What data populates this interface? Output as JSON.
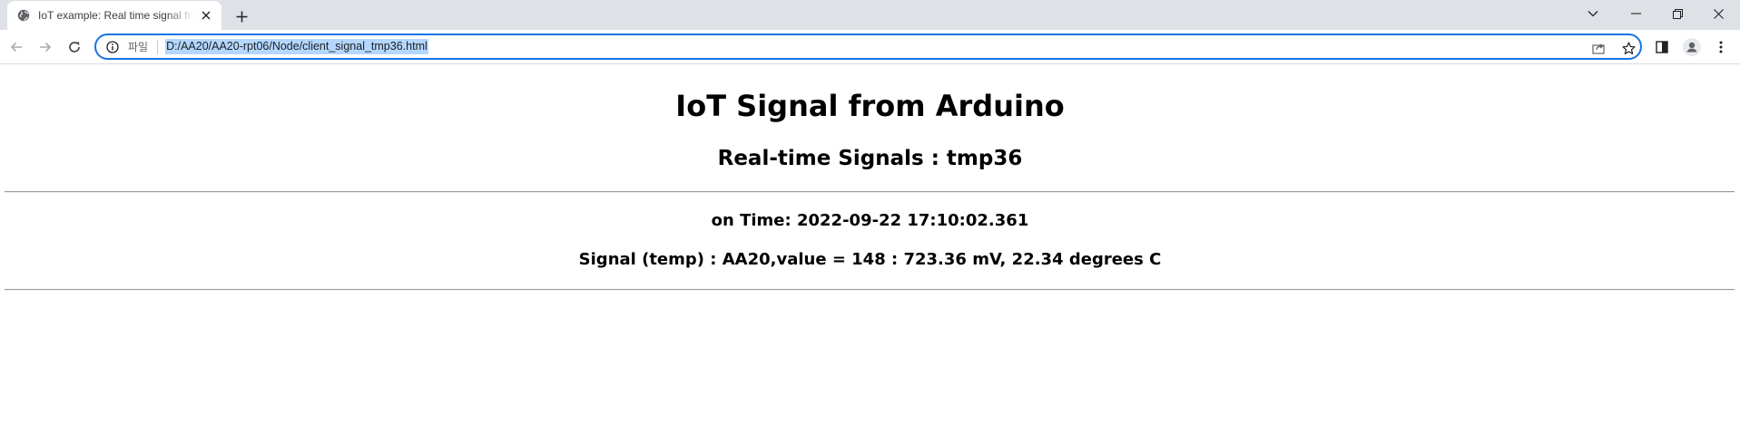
{
  "browser": {
    "tab": {
      "title": "IoT example: Real time signal from Arduino"
    },
    "address_bar": {
      "scheme_label": "파일",
      "url": "D:/AA20/AA20-rpt06/Node/client_signal_tmp36.html"
    }
  },
  "page": {
    "title": "IoT Signal from Arduino",
    "subtitle": "Real-time Signals : tmp36",
    "time_line": "on Time: 2022-09-22 17:10:02.361",
    "signal_line": "Signal (temp) : AA20,value = 148 : 723.36 mV, 22.34 degrees C"
  },
  "colors": {
    "accent": "#1a73e8",
    "tabstrip": "#dee1e6",
    "url_highlight": "#b4d7ff"
  }
}
